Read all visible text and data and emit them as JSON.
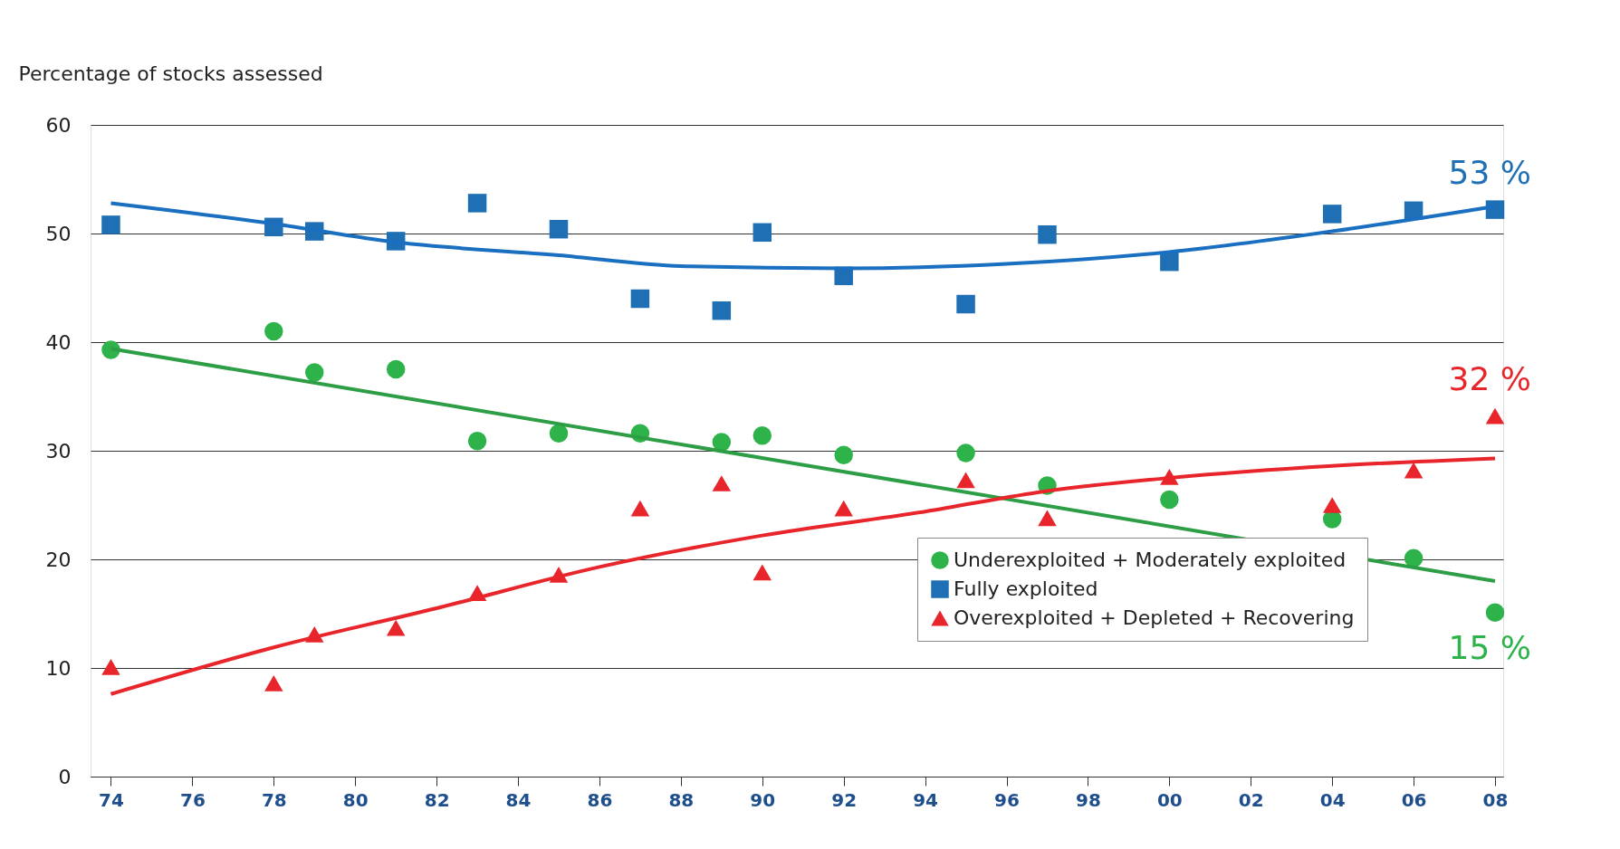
{
  "chart_data": {
    "type": "scatter",
    "ylabel": "Percentage of stocks assessed",
    "x": [
      1974,
      1978,
      1979,
      1981,
      1983,
      1985,
      1987,
      1989,
      1990,
      1992,
      1995,
      1997,
      2000,
      2004,
      2006,
      2008
    ],
    "series": [
      {
        "name": "Underexploited + Moderately exploited",
        "color": "#2db34a",
        "marker": "circle",
        "values": [
          39.3,
          41.0,
          37.2,
          37.5,
          30.9,
          31.6,
          31.6,
          30.8,
          31.4,
          29.6,
          29.8,
          26.8,
          25.5,
          23.7,
          20.1,
          15.1
        ]
      },
      {
        "name": "Fully exploited",
        "color": "#1f6fb5",
        "marker": "square",
        "values": [
          50.8,
          50.6,
          50.2,
          49.3,
          52.8,
          50.4,
          44.0,
          42.9,
          50.1,
          46.1,
          43.5,
          49.9,
          47.4,
          51.8,
          52.1,
          52.2
        ]
      },
      {
        "name": "Overexploited + Depleted + Recovering",
        "color": "#e8252b",
        "marker": "triangle",
        "values": [
          10.1,
          8.6,
          13.1,
          13.7,
          16.9,
          18.6,
          24.7,
          27.0,
          18.8,
          24.7,
          27.3,
          23.8,
          27.6,
          25.0,
          28.2,
          33.2
        ]
      },
      {
        "type": "line",
        "color": "#2d9e45",
        "x": [
          1974,
          2008
        ],
        "values": [
          39.4,
          18.0
        ]
      },
      {
        "type": "line",
        "color": "#1a6fc0",
        "x": [
          1974,
          1978,
          1981,
          1985,
          1988,
          1992,
          1996,
          2000,
          2004,
          2008
        ],
        "values": [
          52.8,
          50.9,
          49.2,
          48.0,
          47.0,
          46.8,
          47.2,
          48.3,
          50.2,
          52.5
        ]
      },
      {
        "type": "line",
        "color": "#e8252b",
        "x": [
          1974,
          1978,
          1982,
          1986,
          1990,
          1994,
          1997,
          2000,
          2004,
          2008
        ],
        "values": [
          7.6,
          11.9,
          15.5,
          19.3,
          22.2,
          24.4,
          26.3,
          27.5,
          28.6,
          29.3
        ]
      }
    ],
    "annotations": [
      "53 %",
      "32 %",
      "15 %"
    ],
    "xlim": [
      1973.5,
      2008.2
    ],
    "ylim": [
      0,
      60
    ],
    "xticks": [
      {
        "value": 1974,
        "label": "74"
      },
      {
        "value": 1976,
        "label": "76"
      },
      {
        "value": 1978,
        "label": "78"
      },
      {
        "value": 1980,
        "label": "80"
      },
      {
        "value": 1982,
        "label": "82"
      },
      {
        "value": 1984,
        "label": "84"
      },
      {
        "value": 1986,
        "label": "86"
      },
      {
        "value": 1988,
        "label": "88"
      },
      {
        "value": 1990,
        "label": "90"
      },
      {
        "value": 1992,
        "label": "92"
      },
      {
        "value": 1994,
        "label": "94"
      },
      {
        "value": 1996,
        "label": "96"
      },
      {
        "value": 1998,
        "label": "98"
      },
      {
        "value": 2000,
        "label": "00"
      },
      {
        "value": 2002,
        "label": "02"
      },
      {
        "value": 2004,
        "label": "04"
      },
      {
        "value": 2006,
        "label": "06"
      },
      {
        "value": 2008,
        "label": "08"
      }
    ],
    "yticks": [
      0,
      10,
      20,
      30,
      40,
      50,
      60
    ],
    "grid": "y",
    "legend": "bottom right"
  }
}
